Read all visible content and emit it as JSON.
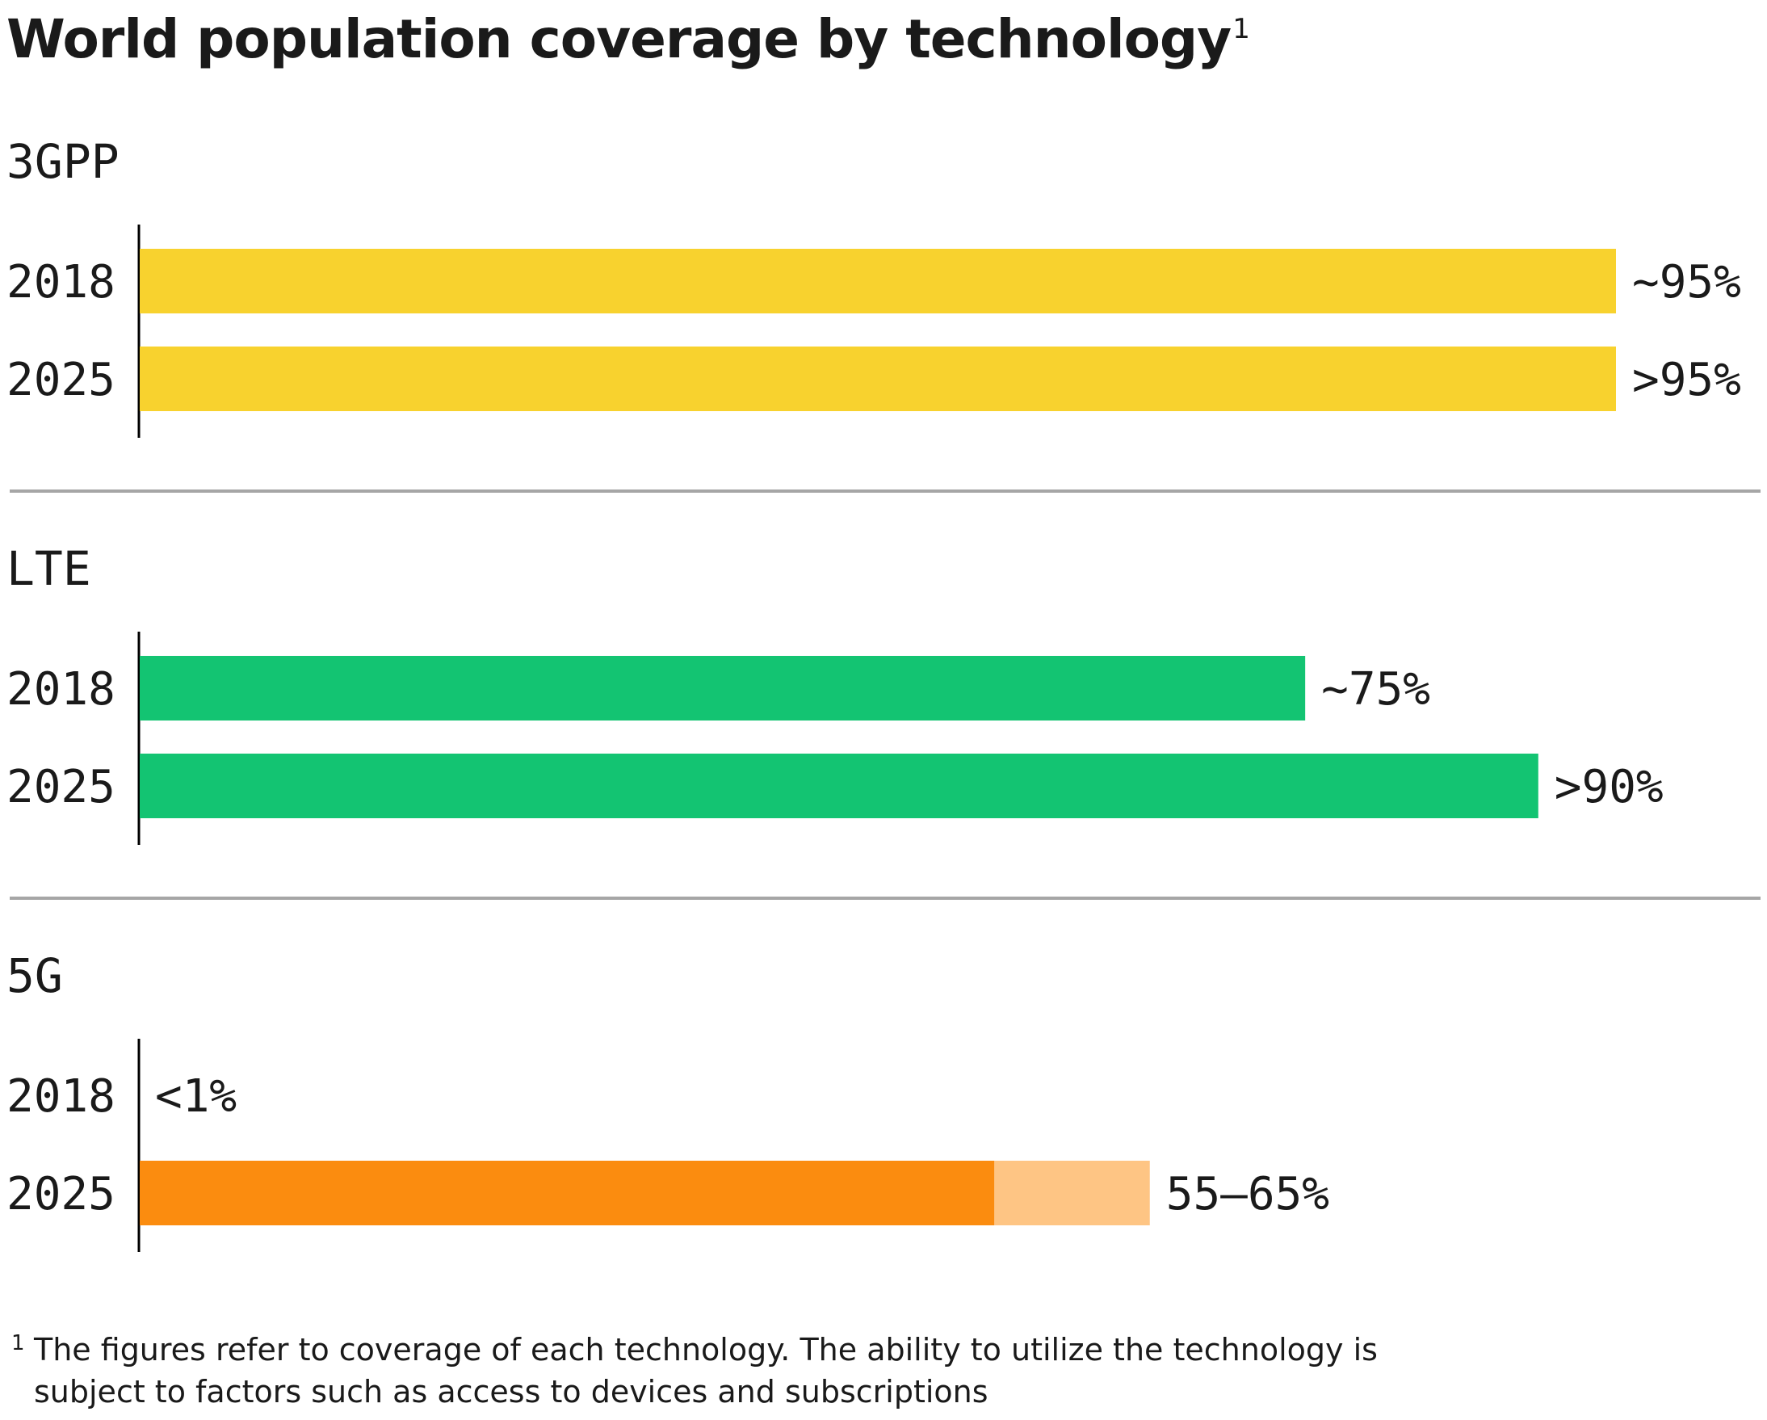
{
  "title": "World population coverage by technology",
  "title_footnote_mark": "1",
  "footnote": {
    "mark": "1",
    "text": "The figures refer to coverage of each technology. The ability to utilize the technology is subject to factors such as access to devices and subscriptions"
  },
  "chart_data": {
    "type": "bar",
    "orientation": "horizontal",
    "xlim": [
      0,
      100
    ],
    "colors": {
      "3GPP": "#F8D22E",
      "LTE": "#13C472",
      "5G": "#FB8C0F",
      "5G_range": "#FEC584",
      "axis": "#000000",
      "divider": "#A6A6A6"
    },
    "groups": [
      {
        "name": "3GPP",
        "color_key": "3GPP",
        "bars": [
          {
            "year": "2018",
            "value": 95,
            "label": "~95%"
          },
          {
            "year": "2025",
            "value": 95,
            "label": ">95%"
          }
        ]
      },
      {
        "name": "LTE",
        "color_key": "LTE",
        "bars": [
          {
            "year": "2018",
            "value": 75,
            "label": "~75%"
          },
          {
            "year": "2025",
            "value": 90,
            "label": ">90%"
          }
        ]
      },
      {
        "name": "5G",
        "color_key": "5G",
        "bars": [
          {
            "year": "2018",
            "value": 0,
            "label": "<1%"
          },
          {
            "year": "2025",
            "value": 55,
            "range_max": 65,
            "label": "55–65%"
          }
        ]
      }
    ]
  }
}
